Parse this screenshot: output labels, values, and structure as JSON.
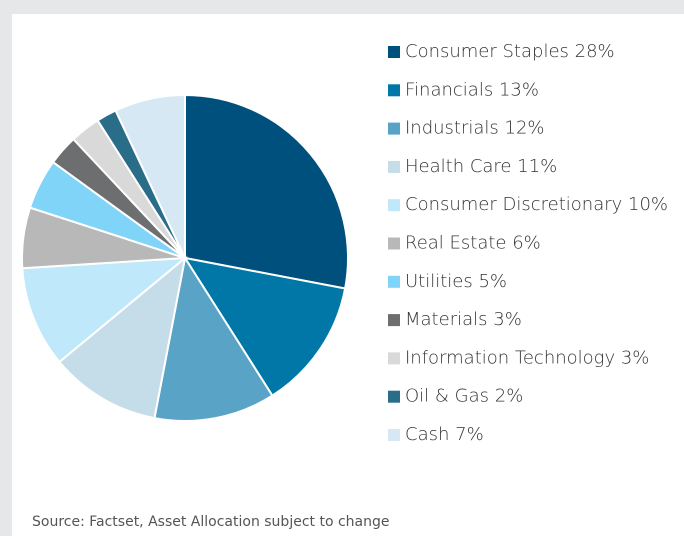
{
  "chart_data": {
    "type": "pie",
    "categories": [
      "Consumer Staples",
      "Financials",
      "Industrials",
      "Health Care",
      "Consumer Discretionary",
      "Real Estate",
      "Utilities",
      "Materials",
      "Information Technology",
      "Oil & Gas",
      "Cash"
    ],
    "values": [
      28,
      13,
      12,
      11,
      10,
      6,
      5,
      3,
      3,
      2,
      7
    ],
    "value_labels": [
      "28%",
      "13%",
      "12%",
      "11%",
      "10%",
      "6%",
      "5%",
      "3%",
      "3%",
      "2%",
      "7%"
    ],
    "colors": [
      "#00507d",
      "#0077a6",
      "#58a3c6",
      "#c5dde8",
      "#bfe8fa",
      "#b8b8b8",
      "#7fd4f7",
      "#6d6e70",
      "#d9d9d9",
      "#2a6d88",
      "#d5e8f4"
    ],
    "legend": "right",
    "source": "Source: Factset, Asset Allocation subject to change"
  }
}
